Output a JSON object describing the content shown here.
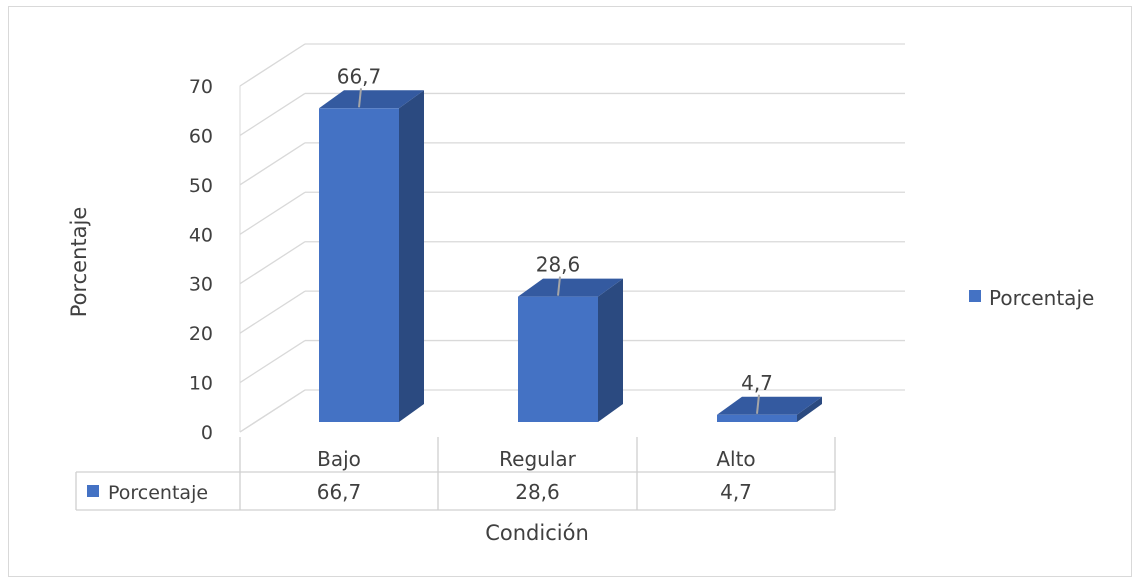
{
  "chart_data": {
    "type": "bar",
    "categories": [
      "Bajo",
      "Regular",
      "Alto"
    ],
    "series": [
      {
        "name": "Porcentaje",
        "values": [
          66.7,
          28.6,
          4.7
        ]
      }
    ],
    "data_labels": [
      "66,7",
      "28,6",
      "4,7"
    ],
    "table_values": [
      "66,7",
      "28,6",
      "4,7"
    ],
    "ylabel": "Porcentaje",
    "xlabel": "Condición",
    "ylim": [
      0,
      70
    ],
    "yticks": [
      "0",
      "10",
      "20",
      "30",
      "40",
      "50",
      "60",
      "70"
    ],
    "legend_position": "right",
    "grid": true,
    "bar_color": "#4472c4",
    "bar_side_color": "#2b4a80",
    "bar_top_color": "#345aa0"
  }
}
